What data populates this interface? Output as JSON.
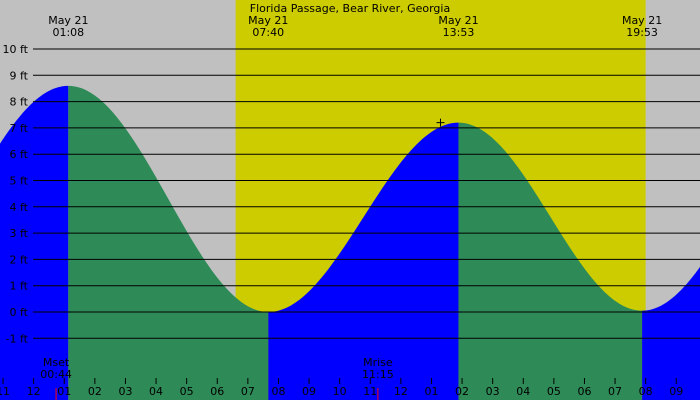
{
  "chart_data": {
    "type": "area",
    "title": "Florida Passage, Bear River, Georgia",
    "xlabel": "",
    "ylabel": "",
    "x_range_hours": [
      -1.1,
      21.8
    ],
    "ylim": [
      -2.0,
      11.0
    ],
    "grid": true,
    "y_ticks": [
      {
        "value": -1,
        "label": "-1 ft"
      },
      {
        "value": 0,
        "label": "0 ft"
      },
      {
        "value": 1,
        "label": "1 ft"
      },
      {
        "value": 2,
        "label": "2 ft"
      },
      {
        "value": 3,
        "label": "3 ft"
      },
      {
        "value": 4,
        "label": "4 ft"
      },
      {
        "value": 5,
        "label": "5 ft"
      },
      {
        "value": 6,
        "label": "6 ft"
      },
      {
        "value": 7,
        "label": "7 ft"
      },
      {
        "value": 8,
        "label": "8 ft"
      },
      {
        "value": 9,
        "label": "9 ft"
      },
      {
        "value": 10,
        "label": "10 ft"
      }
    ],
    "x_ticks": [
      {
        "hour": -1,
        "label": "11"
      },
      {
        "hour": 0,
        "label": "12"
      },
      {
        "hour": 1,
        "label": "01"
      },
      {
        "hour": 2,
        "label": "02"
      },
      {
        "hour": 3,
        "label": "03"
      },
      {
        "hour": 4,
        "label": "04"
      },
      {
        "hour": 5,
        "label": "05"
      },
      {
        "hour": 6,
        "label": "06"
      },
      {
        "hour": 7,
        "label": "07"
      },
      {
        "hour": 8,
        "label": "08"
      },
      {
        "hour": 9,
        "label": "09"
      },
      {
        "hour": 10,
        "label": "10"
      },
      {
        "hour": 11,
        "label": "11"
      },
      {
        "hour": 12,
        "label": "12"
      },
      {
        "hour": 13,
        "label": "01"
      },
      {
        "hour": 14,
        "label": "02"
      },
      {
        "hour": 15,
        "label": "03"
      },
      {
        "hour": 16,
        "label": "04"
      },
      {
        "hour": 17,
        "label": "05"
      },
      {
        "hour": 18,
        "label": "06"
      },
      {
        "hour": 19,
        "label": "07"
      },
      {
        "hour": 20,
        "label": "08"
      },
      {
        "hour": 21,
        "label": "09"
      }
    ],
    "tide_extremes": [
      {
        "hour": 1.133,
        "height": 8.6,
        "type": "high",
        "date": "May 21",
        "time": "01:08"
      },
      {
        "hour": 7.667,
        "height": 0.0,
        "type": "low",
        "date": "May 21",
        "time": "07:40"
      },
      {
        "hour": 13.883,
        "height": 7.2,
        "type": "high",
        "date": "May 21",
        "time": "13:53"
      },
      {
        "hour": 19.883,
        "height": 0.05,
        "type": "low",
        "date": "May 21",
        "time": "19:53"
      }
    ],
    "curve_edges": {
      "start_hour": -1.1,
      "start_height": 6.0,
      "end_hour": 21.8,
      "end_height": 2.5
    },
    "daylight": {
      "start_hour": 6.6,
      "end_hour": 20.0
    },
    "moon_events": [
      {
        "label": "Mset",
        "time": "00:44",
        "hour": 0.733
      },
      {
        "label": "Mrise",
        "time": "11:15",
        "hour": 11.25
      }
    ],
    "colors": {
      "night": "#c0c0c0",
      "day": "#cccc00",
      "rising": "#0000ff",
      "falling": "#2e8b57",
      "grid": "#000000",
      "moon_marker": "#ff0000"
    }
  }
}
